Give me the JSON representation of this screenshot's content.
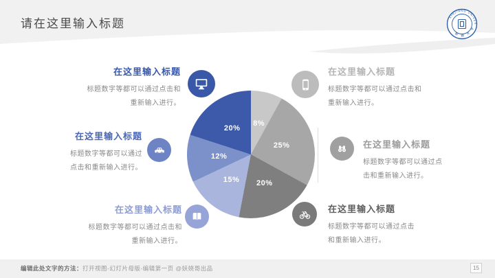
{
  "slide": {
    "title": "请在这里输入标题",
    "page_number": "15",
    "footer": {
      "label_bold": "编辑此处文字的方法：",
      "label_rest": "打开视图-幻灯片母版-编辑第一页 @妖娆哥出品"
    }
  },
  "logo": {
    "arc_text_top": "XINJIANG UNIVERSITY",
    "arc_text_bottom": "新 疆 大 学",
    "color": "#2f5fa5"
  },
  "icons": [
    "monitor-icon",
    "car-icon",
    "book-icon",
    "smartphone-icon",
    "binoculars-icon",
    "bicycle-icon",
    "university-seal-icon"
  ],
  "colors": {
    "header_band": "#f1f1f2",
    "header_band2": "#efeff0",
    "footer_band": "#f0f0f1",
    "title_text": "#4a4a4a",
    "body_text": "#8a8a8a",
    "divider": "#dedede"
  },
  "items": {
    "left": [
      {
        "title": "在这里输入标题",
        "body_line1": "标题数字等都可以通过点击和",
        "body_line2": "重新输入进行。",
        "title_color": "#3a58a8",
        "icon_bg": "#3a58a8",
        "icon": "monitor"
      },
      {
        "title": "在这里输入标题",
        "body_line1": "标题数字等都可以通过",
        "body_line2": "点击和重新输入进行。",
        "title_color": "#4d68b1",
        "icon_bg": "#6e83c4",
        "icon": "car"
      },
      {
        "title": "在这里输入标题",
        "body_line1": "标题数字等都可以通过点击和",
        "body_line2": "重新输入进行。",
        "title_color": "#8d9cd3",
        "icon_bg": "#96a4d7",
        "icon": "book"
      }
    ],
    "right": [
      {
        "title": "在这里输入标题",
        "body_line1": "标题数字等都可以通过点击和",
        "body_line2": "重新输入进行。",
        "title_color": "#b5b5b5",
        "icon_bg": "#bcbcbc",
        "icon": "smartphone"
      },
      {
        "title": "在这里输入标题",
        "body_line1": "标题数字等都可以通过点",
        "body_line2": "击和重新输入进行。",
        "title_color": "#9c9c9c",
        "icon_bg": "#a0a0a0",
        "icon": "binoculars"
      },
      {
        "title": "在这里输入标题",
        "body_line1": "标题数字等都可以通过点击",
        "body_line2": "和重新输入进行。",
        "title_color": "#5f5f5f",
        "icon_bg": "#7a7a7a",
        "icon": "bicycle"
      }
    ]
  },
  "chart_data": {
    "type": "pie",
    "title": "",
    "labels": [
      "8%",
      "25%",
      "20%",
      "15%",
      "12%",
      "20%"
    ],
    "values": [
      8,
      25,
      20,
      15,
      12,
      20
    ],
    "colors": [
      "#c8c8c8",
      "#a7a7a7",
      "#7f7f7f",
      "#a9b5dd",
      "#7c90c9",
      "#3c5aa9"
    ],
    "start_angle_deg": 0,
    "direction": "clockwise",
    "label_color": "#ffffff",
    "label_radius_factor": 0.5,
    "legend_position": "none"
  }
}
